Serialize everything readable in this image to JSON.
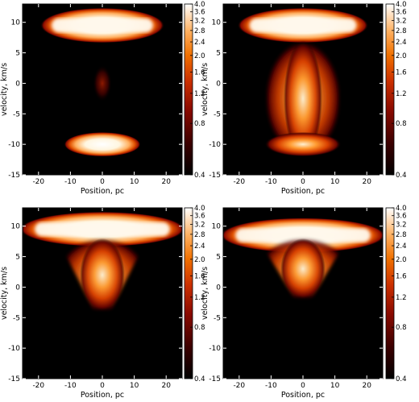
{
  "chart_data": [
    {
      "type": "heatmap",
      "panel": "top-left",
      "xlabel": "Position, pc",
      "ylabel": "velocity, km/s",
      "xlim": [
        -25,
        25
      ],
      "ylim": [
        -15,
        13
      ],
      "xticks": [
        -20,
        -10,
        0,
        10,
        20
      ],
      "yticks": [
        -15,
        -10,
        -5,
        0,
        5,
        10
      ],
      "colorbar": {
        "ticks": [
          0.4,
          0.8,
          1.2,
          1.6,
          2.0,
          2.4,
          2.8,
          3.2,
          3.6,
          4.0
        ],
        "scale": "log",
        "range": [
          0.4,
          4.0
        ]
      },
      "emission": [
        {
          "x": [
            -18,
            18
          ],
          "v": [
            7,
            12
          ],
          "level": 4.0,
          "feature": "shell"
        },
        {
          "x": [
            -3,
            3
          ],
          "v": [
            -3,
            3
          ],
          "level": 0.6,
          "feature": "faint column"
        },
        {
          "x": [
            -12,
            12
          ],
          "v": [
            -12,
            -8
          ],
          "level": 3.6,
          "feature": "cloud"
        }
      ]
    },
    {
      "type": "heatmap",
      "panel": "top-right",
      "xlabel": "Position, pc",
      "ylabel": "velocity, km/s",
      "xlim": [
        -25,
        25
      ],
      "ylim": [
        -15,
        13
      ],
      "xticks": [
        -20,
        -10,
        0,
        10,
        20
      ],
      "yticks": [
        -15,
        -10,
        -5,
        0,
        5,
        10
      ],
      "colorbar": {
        "ticks": [
          0.4,
          0.8,
          1.2,
          1.6,
          2.0,
          2.4,
          2.8,
          3.2,
          3.6,
          4.0
        ],
        "scale": "log",
        "range": [
          0.4,
          4.0
        ]
      },
      "emission": [
        {
          "x": [
            -19,
            19
          ],
          "v": [
            7,
            12
          ],
          "level": 4.0,
          "feature": "shell"
        },
        {
          "x": [
            -12,
            12
          ],
          "v": [
            -12,
            7
          ],
          "level": 2.4,
          "feature": "column"
        },
        {
          "x": [
            -12,
            12
          ],
          "v": [
            -12,
            -8
          ],
          "level": 2.0,
          "feature": "cloud"
        }
      ]
    },
    {
      "type": "heatmap",
      "panel": "bottom-left",
      "xlabel": "Position, pc",
      "ylabel": "velocity, km/s",
      "xlim": [
        -25,
        25
      ],
      "ylim": [
        -15,
        13
      ],
      "xticks": [
        -20,
        -10,
        0,
        10,
        20
      ],
      "yticks": [
        -15,
        -10,
        -5,
        0,
        5,
        10
      ],
      "colorbar": {
        "ticks": [
          0.4,
          0.8,
          1.2,
          1.6,
          2.0,
          2.4,
          2.8,
          3.2,
          3.6,
          4.0
        ],
        "scale": "log",
        "range": [
          0.4,
          4.0
        ]
      },
      "emission": [
        {
          "x": [
            -24,
            24
          ],
          "v": [
            7,
            12
          ],
          "level": 4.0,
          "feature": "shell"
        },
        {
          "x": [
            -14,
            14
          ],
          "v": [
            -4,
            8
          ],
          "level": 2.4,
          "feature": "funnel"
        }
      ]
    },
    {
      "type": "heatmap",
      "panel": "bottom-right",
      "xlabel": "Position, pc",
      "ylabel": "velocity, km/s",
      "xlim": [
        -25,
        25
      ],
      "ylim": [
        -15,
        13
      ],
      "xticks": [
        -20,
        -10,
        0,
        10,
        20
      ],
      "yticks": [
        -15,
        -10,
        -5,
        0,
        5,
        10
      ],
      "colorbar": {
        "ticks": [
          0.4,
          0.8,
          1.2,
          1.6,
          2.0,
          2.4,
          2.8,
          3.2,
          3.6,
          4.0
        ],
        "scale": "log",
        "range": [
          0.4,
          4.0
        ]
      },
      "emission": [
        {
          "x": [
            -24,
            24
          ],
          "v": [
            6,
            11
          ],
          "level": 3.6,
          "feature": "shell"
        },
        {
          "x": [
            -14,
            14
          ],
          "v": [
            -2,
            8
          ],
          "level": 2.0,
          "feature": "funnel"
        }
      ]
    }
  ]
}
